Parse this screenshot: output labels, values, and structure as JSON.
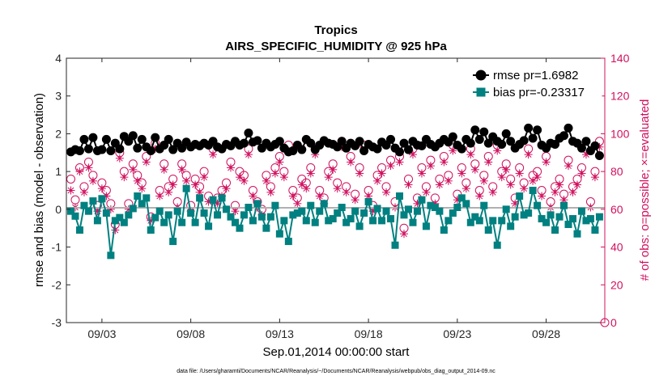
{
  "chart_data": {
    "type": "line",
    "title": "Tropics",
    "subtitle": "AIRS_SPECIFIC_HUMIDITY @ 925 hPa",
    "xlabel": "Sep.01,2014 00:00:00 start",
    "ylabel_left": "rmse and bias (model - observation)",
    "ylabel_right": "# of obs: o=possible; ×=evaluated",
    "xlim": [
      1.0,
      31.3
    ],
    "ylim_left": [
      -3,
      4
    ],
    "ylim_right": [
      0,
      140
    ],
    "xticks": [
      3,
      8,
      13,
      18,
      23,
      28
    ],
    "xtick_labels": [
      "09/03",
      "09/08",
      "09/13",
      "09/18",
      "09/23",
      "09/28"
    ],
    "yticks_left": [
      -3,
      -2,
      -1,
      0,
      1,
      2,
      3,
      4
    ],
    "ytick_labels_left": [
      "-3",
      "-2",
      "-1",
      "0",
      "1",
      "2",
      "3",
      "4"
    ],
    "yticks_right": [
      0,
      20,
      40,
      60,
      80,
      100,
      120,
      140
    ],
    "ytick_labels_right": [
      "0",
      "20",
      "40",
      "60",
      "80",
      "100",
      "120",
      "140"
    ],
    "footer": "data file: /Users/gharamti/Documents/NCAR/Reanalysis/~/Documents/NCAR/Reanalysis/webpub/obs_diag_output_2014-09.nc",
    "colors": {
      "rmse": "#000000",
      "bias": "#008080",
      "obs": "#d0105e",
      "zero_line": "#b0b0b0"
    },
    "legend": [
      {
        "name": "rmse pr=1.6982",
        "marker": "circle",
        "color": "#000000"
      },
      {
        "name": "bias pr=-0.23317",
        "marker": "square",
        "color": "#008080"
      }
    ],
    "x": [
      1.25,
      1.5,
      1.75,
      2.0,
      2.25,
      2.5,
      2.75,
      3.0,
      3.25,
      3.5,
      3.75,
      4.0,
      4.25,
      4.5,
      4.75,
      5.0,
      5.25,
      5.5,
      5.75,
      6.0,
      6.25,
      6.5,
      6.75,
      7.0,
      7.25,
      7.5,
      7.75,
      8.0,
      8.25,
      8.5,
      8.75,
      9.0,
      9.25,
      9.5,
      9.75,
      10.0,
      10.25,
      10.5,
      10.75,
      11.0,
      11.25,
      11.5,
      11.75,
      12.0,
      12.25,
      12.5,
      12.75,
      13.0,
      13.25,
      13.5,
      13.75,
      14.0,
      14.25,
      14.5,
      14.75,
      15.0,
      15.25,
      15.5,
      15.75,
      16.0,
      16.25,
      16.5,
      16.75,
      17.0,
      17.25,
      17.5,
      17.75,
      18.0,
      18.25,
      18.5,
      18.75,
      19.0,
      19.25,
      19.5,
      19.75,
      20.0,
      20.25,
      20.5,
      20.75,
      21.0,
      21.25,
      21.5,
      21.75,
      22.0,
      22.25,
      22.5,
      22.75,
      23.0,
      23.25,
      23.5,
      23.75,
      24.0,
      24.25,
      24.5,
      24.75,
      25.0,
      25.25,
      25.5,
      25.75,
      26.0,
      26.25,
      26.5,
      26.75,
      27.0,
      27.25,
      27.5,
      27.75,
      28.0,
      28.25,
      28.5,
      28.75,
      29.0,
      29.25,
      29.5,
      29.75,
      30.0,
      30.25,
      30.5,
      30.75,
      31.0
    ],
    "series": [
      {
        "name": "rmse",
        "values": [
          1.52,
          1.58,
          1.55,
          1.85,
          1.6,
          1.9,
          1.55,
          1.58,
          1.85,
          1.55,
          1.75,
          1.6,
          1.93,
          1.8,
          1.95,
          1.62,
          1.85,
          1.65,
          1.55,
          1.9,
          1.6,
          1.7,
          1.85,
          1.58,
          1.75,
          1.62,
          1.78,
          1.65,
          1.72,
          1.68,
          1.75,
          1.7,
          1.8,
          1.65,
          1.6,
          1.72,
          1.68,
          1.8,
          1.7,
          1.75,
          2.02,
          1.78,
          1.82,
          1.62,
          1.75,
          1.65,
          1.72,
          1.8,
          1.62,
          1.52,
          1.55,
          1.7,
          1.58,
          1.85,
          1.75,
          1.58,
          1.7,
          1.82,
          1.75,
          1.72,
          1.65,
          1.8,
          1.62,
          1.75,
          1.68,
          1.8,
          1.55,
          1.72,
          1.65,
          1.6,
          1.78,
          1.7,
          1.85,
          1.62,
          1.52,
          1.75,
          1.58,
          1.8,
          1.7,
          1.68,
          1.85,
          1.72,
          1.65,
          1.75,
          1.85,
          1.78,
          1.92,
          1.7,
          1.6,
          1.85,
          1.75,
          2.1,
          1.85,
          2.05,
          1.75,
          1.92,
          1.8,
          1.72,
          2.0,
          1.8,
          1.62,
          1.72,
          1.82,
          2.15,
          1.88,
          2.1,
          1.7,
          1.62,
          1.75,
          1.72,
          1.88,
          1.95,
          2.15,
          1.8,
          1.75,
          1.62,
          1.8,
          1.55,
          1.68,
          1.42
        ]
      },
      {
        "name": "bias",
        "values": [
          -0.05,
          -0.18,
          -0.55,
          0.1,
          -0.05,
          0.22,
          -0.3,
          0.28,
          -0.1,
          -1.22,
          -0.3,
          -0.22,
          -0.35,
          -0.15,
          0.02,
          0.35,
          0.15,
          0.3,
          -0.55,
          -0.22,
          -0.05,
          -0.35,
          -0.15,
          -0.85,
          -0.05,
          -0.35,
          0.55,
          -0.1,
          -0.35,
          0.3,
          -0.1,
          -0.45,
          0.25,
          -0.15,
          0.3,
          0.0,
          -0.2,
          -0.35,
          -0.5,
          -0.15,
          0.05,
          -0.3,
          0.15,
          -0.2,
          -0.5,
          -0.2,
          0.1,
          -0.65,
          -0.3,
          -0.85,
          -0.15,
          -0.1,
          -0.05,
          -0.3,
          0.1,
          -0.35,
          -0.05,
          0.15,
          -0.3,
          -0.25,
          -0.1,
          0.05,
          -0.35,
          -0.25,
          -0.05,
          -0.45,
          -0.1,
          0.2,
          -0.3,
          0.02,
          -0.3,
          -0.05,
          -0.25,
          -0.95,
          0.35,
          -0.15,
          0.0,
          -0.35,
          -0.05,
          0.25,
          -0.45,
          0.1,
          0.05,
          -0.05,
          -0.55,
          -0.3,
          -0.1,
          0.05,
          0.3,
          0.15,
          -0.35,
          -0.2,
          -0.3,
          0.1,
          -0.55,
          -0.3,
          -0.95,
          -0.3,
          0.0,
          -0.45,
          -0.2,
          0.35,
          -0.15,
          -0.1,
          0.5,
          0.1,
          -0.25,
          -0.35,
          -0.15,
          -0.55,
          -0.2,
          0.1,
          -0.4,
          -0.25,
          -0.65,
          -0.05,
          -0.3,
          -0.25,
          -0.55,
          -0.2
        ]
      },
      {
        "name": "obs_possible",
        "values": [
          76,
          65,
          82,
          72,
          85,
          78,
          62,
          74,
          70,
          63,
          52,
          90,
          80,
          63,
          84,
          78,
          74,
          88,
          56,
          95,
          70,
          84,
          72,
          76,
          64,
          84,
          78,
          62,
          76,
          72,
          80,
          67,
          92,
          66,
          70,
          74,
          85,
          62,
          80,
          78,
          92,
          70,
          64,
          60,
          78,
          72,
          82,
          88,
          80,
          94,
          70,
          66,
          76,
          74,
          82,
          92,
          70,
          66,
          80,
          84,
          74,
          96,
          72,
          88,
          68,
          82,
          94,
          70,
          62,
          78,
          82,
          72,
          86,
          64,
          88,
          50,
          76,
          92,
          66,
          82,
          72,
          86,
          66,
          76,
          88,
          78,
          94,
          68,
          82,
          74,
          92,
          84,
          70,
          78,
          88,
          72,
          94,
          80,
          84,
          76,
          66,
          82,
          74,
          92,
          78,
          80,
          70,
          88,
          64,
          72,
          76,
          68,
          86,
          72,
          76,
          82,
          92,
          64,
          80,
          96
        ]
      },
      {
        "name": "obs_evaluated",
        "values": [
          70,
          61,
          80,
          69,
          82,
          75,
          59,
          71,
          67,
          60,
          49,
          87,
          77,
          60,
          81,
          75,
          71,
          85,
          54,
          92,
          67,
          81,
          69,
          73,
          61,
          81,
          75,
          59,
          73,
          69,
          77,
          64,
          89,
          63,
          67,
          71,
          82,
          59,
          77,
          75,
          89,
          67,
          61,
          57,
          75,
          69,
          79,
          85,
          77,
          91,
          67,
          63,
          73,
          71,
          79,
          89,
          67,
          63,
          77,
          81,
          71,
          93,
          69,
          85,
          65,
          79,
          91,
          67,
          59,
          75,
          79,
          69,
          83,
          61,
          85,
          47,
          73,
          89,
          63,
          79,
          69,
          83,
          63,
          73,
          85,
          75,
          91,
          65,
          79,
          71,
          89,
          81,
          67,
          75,
          85,
          69,
          91,
          77,
          81,
          73,
          63,
          79,
          71,
          89,
          75,
          77,
          67,
          85,
          61,
          69,
          73,
          65,
          83,
          69,
          73,
          79,
          89,
          61,
          77,
          93
        ]
      }
    ]
  }
}
